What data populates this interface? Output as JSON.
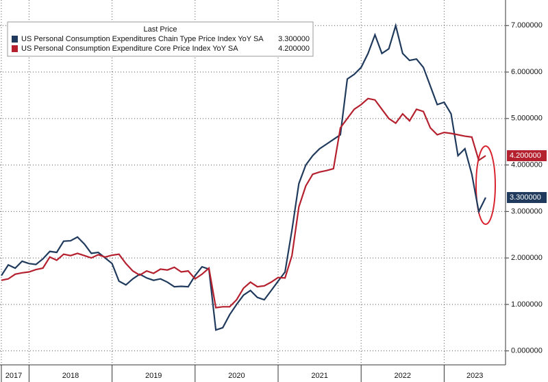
{
  "chart_data": {
    "type": "line",
    "legend_title": "Last Price",
    "categories": [
      null,
      null,
      null,
      null,
      null,
      null,
      null,
      null,
      null,
      null,
      null,
      null,
      null,
      null,
      null,
      null,
      null,
      null,
      null,
      null,
      null,
      null,
      null,
      null,
      null,
      null,
      null,
      null,
      null,
      null,
      null,
      null,
      null,
      null,
      null,
      null,
      null,
      null,
      null,
      null,
      null,
      null,
      null,
      null,
      null,
      null,
      null,
      null,
      null,
      null,
      null,
      null,
      null,
      null,
      null,
      null,
      null,
      null,
      null,
      null,
      null,
      null,
      null,
      null,
      null,
      null,
      null,
      null,
      null,
      null,
      null
    ],
    "series": [
      {
        "name": "US Personal Consumption Expenditures Chain Type Price Index YoY SA",
        "last_label": "3.300000",
        "color": "#1f3a5c",
        "values": [
          1.62,
          1.85,
          1.78,
          1.93,
          1.88,
          1.86,
          1.98,
          2.14,
          2.12,
          2.36,
          2.37,
          2.45,
          2.3,
          2.1,
          2.12,
          2.0,
          1.88,
          1.5,
          1.42,
          1.55,
          1.65,
          1.57,
          1.52,
          1.55,
          1.48,
          1.38,
          1.39,
          1.38,
          1.62,
          1.81,
          1.76,
          0.45,
          0.5,
          0.78,
          1.0,
          1.2,
          1.3,
          1.15,
          1.1,
          1.3,
          1.5,
          1.7,
          2.6,
          3.6,
          4.0,
          4.2,
          4.35,
          4.45,
          4.55,
          4.65,
          5.85,
          5.95,
          6.1,
          6.4,
          6.8,
          6.4,
          6.5,
          7.0,
          6.4,
          6.25,
          6.28,
          6.1,
          5.7,
          5.3,
          5.35,
          5.1,
          4.2,
          4.35,
          3.8,
          3.0,
          3.3
        ]
      },
      {
        "name": "US Personal Consumption Expenditure Core Price Index YoY SA",
        "last_label": "4.200000",
        "color": "#b5202e",
        "values": [
          1.52,
          1.55,
          1.65,
          1.68,
          1.7,
          1.75,
          1.78,
          2.02,
          1.95,
          2.08,
          2.05,
          2.1,
          2.05,
          2.0,
          2.07,
          2.02,
          2.06,
          2.08,
          1.88,
          1.72,
          1.63,
          1.72,
          1.67,
          1.76,
          1.74,
          1.8,
          1.7,
          1.72,
          1.55,
          1.65,
          1.78,
          0.93,
          0.95,
          0.95,
          1.1,
          1.35,
          1.48,
          1.38,
          1.4,
          1.48,
          1.58,
          1.57,
          2.05,
          3.1,
          3.55,
          3.8,
          3.85,
          3.88,
          3.92,
          4.8,
          5.0,
          5.2,
          5.3,
          5.43,
          5.4,
          5.2,
          5.0,
          4.9,
          5.1,
          4.95,
          5.2,
          5.15,
          4.8,
          4.65,
          4.7,
          4.68,
          4.65,
          4.62,
          4.6,
          4.1,
          4.2
        ]
      }
    ],
    "ylim": [
      -0.3,
      7.55
    ],
    "yticks": [
      {
        "value": 0,
        "label": "0.000000"
      },
      {
        "value": 1,
        "label": "1.000000"
      },
      {
        "value": 2,
        "label": "2.000000"
      },
      {
        "value": 3,
        "label": "3.000000"
      },
      {
        "value": 4,
        "label": "4.000000"
      },
      {
        "value": 5,
        "label": "5.000000"
      },
      {
        "value": 6,
        "label": "6.000000"
      },
      {
        "value": 7,
        "label": "7.000000"
      }
    ],
    "xticks": [
      {
        "value": 0,
        "label": "2017"
      },
      {
        "value": 4,
        "label": "2018"
      },
      {
        "value": 16,
        "label": "2019"
      },
      {
        "value": 28,
        "label": "2020"
      },
      {
        "value": 40,
        "label": "2021"
      },
      {
        "value": 52,
        "label": "2022"
      },
      {
        "value": 64,
        "label": "2023"
      }
    ],
    "grid": true
  }
}
